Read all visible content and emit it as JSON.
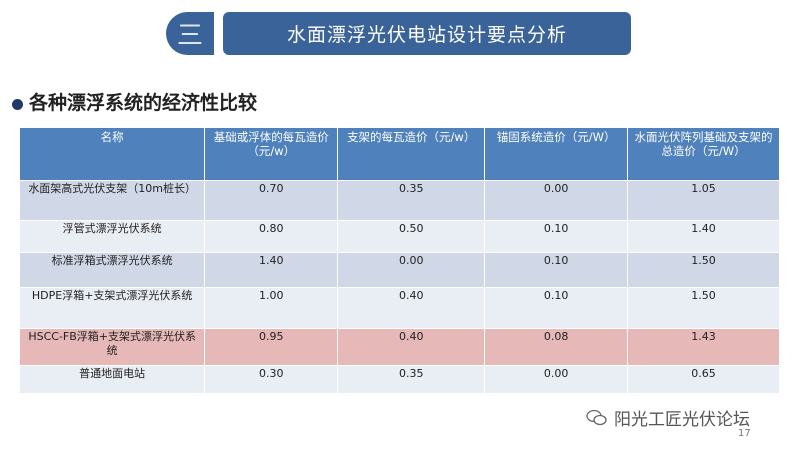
{
  "section": {
    "number": "三",
    "title": "水面漂浮光伏电站设计要点分析"
  },
  "subtitle": "各种漂浮系统的经济性比较",
  "table": {
    "headers": [
      "名称",
      "基础或浮体的每瓦造价（元/w）",
      "支架的每瓦造价（元/w）",
      "锚固系统造价（元/W）",
      "水面光伏阵列基础及支架的总造价（元/W）"
    ],
    "rows": [
      [
        "水面架高式光伏支架（10m桩长）",
        "0.70",
        "0.35",
        "0.00",
        "1.05"
      ],
      [
        "浮管式漂浮光伏系统",
        "0.80",
        "0.50",
        "0.10",
        "1.40"
      ],
      [
        "标准浮箱式漂浮光伏系统",
        "1.40",
        "0.00",
        "0.10",
        "1.50"
      ],
      [
        "HDPE浮箱+支架式漂浮光伏系统",
        "1.00",
        "0.40",
        "0.10",
        "1.50"
      ],
      [
        "HSCC-FB浮箱+支架式漂浮光伏系统",
        "0.95",
        "0.40",
        "0.08",
        "1.43"
      ],
      [
        "普通地面电站",
        "0.30",
        "0.35",
        "0.00",
        "0.65"
      ]
    ],
    "highlight_row": 4,
    "colors": {
      "header": "#4f81bd",
      "row_dark": "#d0d8e8",
      "row_light": "#e9edf4",
      "highlight": "#e6b8b7"
    }
  },
  "watermark": {
    "icon": "wechat-icon",
    "text": "阳光工匠光伏论坛"
  },
  "page_number": "17"
}
